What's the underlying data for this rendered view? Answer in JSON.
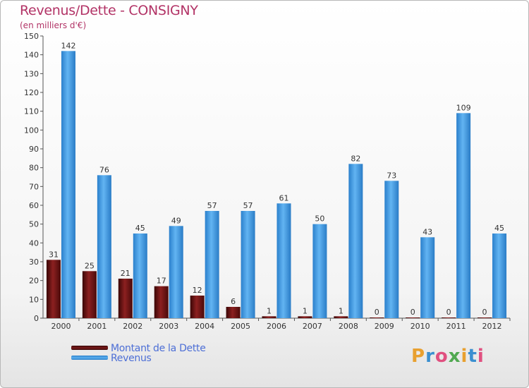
{
  "chart_data": {
    "type": "bar",
    "title": "Revenus/Dette - CONSIGNY",
    "subtitle": "(en milliers d'€)",
    "categories": [
      "2000",
      "2001",
      "2002",
      "2003",
      "2004",
      "2005",
      "2006",
      "2007",
      "2008",
      "2009",
      "2010",
      "2011",
      "2012"
    ],
    "series": [
      {
        "name": "Montant de la Dette",
        "color": "#7a1a1a",
        "values": [
          31,
          25,
          21,
          17,
          12,
          6,
          1,
          1,
          1,
          0,
          0,
          0,
          0
        ]
      },
      {
        "name": "Revenus",
        "color": "#4f9fe0",
        "values": [
          142,
          76,
          45,
          49,
          57,
          57,
          61,
          50,
          82,
          73,
          43,
          109,
          45
        ]
      }
    ],
    "ylim": [
      0,
      150
    ],
    "yticks": [
      0,
      10,
      20,
      30,
      40,
      50,
      60,
      70,
      80,
      90,
      100,
      110,
      120,
      130,
      140,
      150
    ],
    "xlabel": "",
    "ylabel": "",
    "legend_position": "bottom-left",
    "grid": false
  },
  "legend": {
    "debt_label": "Montant de la Dette",
    "revenue_label": "Revenus"
  },
  "logo": {
    "text": "Proxiti",
    "colors": [
      "#e8a030",
      "#3a8fd0",
      "#e05080",
      "#50a850",
      "#e8a030",
      "#3a8fd0",
      "#e05080"
    ]
  }
}
